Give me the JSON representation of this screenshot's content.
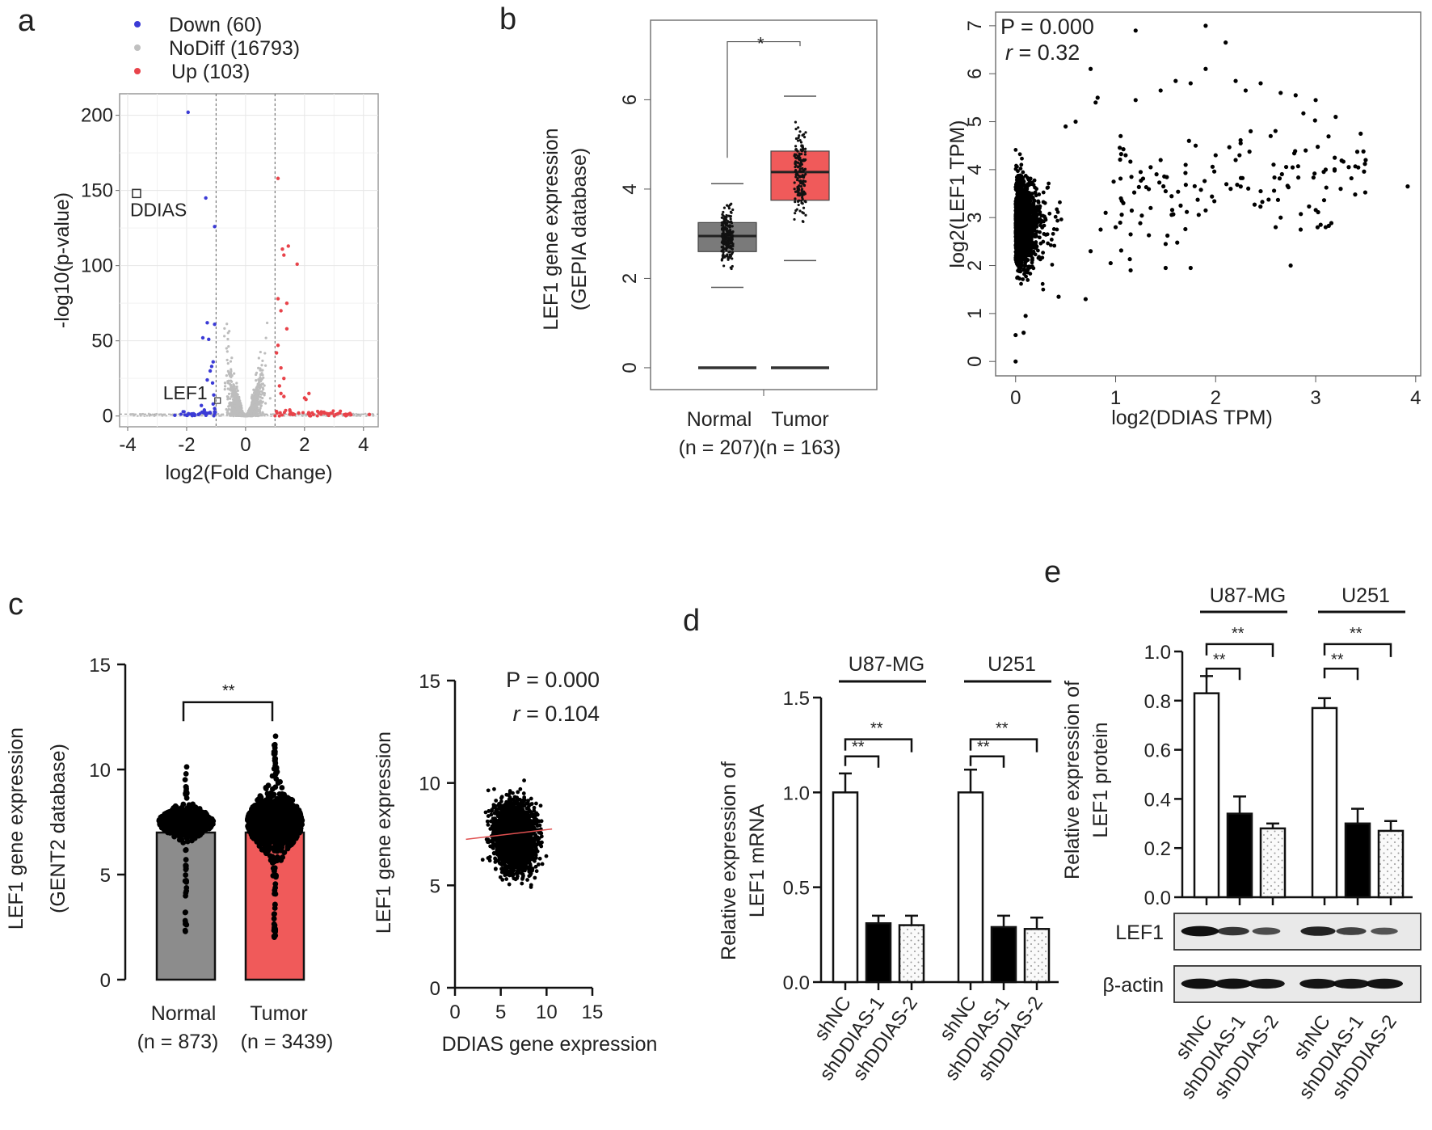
{
  "figure": {
    "panel_labels": [
      "a",
      "b",
      "c",
      "d",
      "e"
    ]
  },
  "chart_data": [
    {
      "id": "a",
      "type": "scatter",
      "subtype": "volcano",
      "title": "",
      "xlabel": "log2(Fold Change)",
      "ylabel": "-log10(p-value)",
      "xlim": [
        -4,
        4.5
      ],
      "ylim": [
        -5,
        210
      ],
      "xticks": [
        "-4",
        "-2",
        "0",
        "2",
        "4"
      ],
      "yticks": [
        "0",
        "50",
        "100",
        "150",
        "200"
      ],
      "grid": true,
      "legend_position": "top",
      "legend": [
        {
          "name": "Down (60)",
          "color": "#3b3bd6"
        },
        {
          "name": "NoDiff (16793)",
          "color": "#c0c0c0"
        },
        {
          "name": "Up (103)",
          "color": "#e8434a"
        }
      ],
      "thresholds_x": [
        -1,
        1
      ],
      "annotations": [
        {
          "label": "DDIAS",
          "x": -3.7,
          "y": 148
        },
        {
          "label": "LEF1",
          "x": -1.1,
          "y": 10
        }
      ],
      "series": [
        {
          "name": "Down",
          "points": [
            [
              -1.95,
              202
            ],
            [
              -1.35,
              145
            ],
            [
              -1.05,
              126
            ],
            [
              -1.3,
              62
            ],
            [
              -1.05,
              61
            ],
            [
              -1.45,
              52
            ],
            [
              -1.25,
              51
            ],
            [
              -1.1,
              36
            ],
            [
              -1.2,
              30
            ],
            [
              -1.15,
              33
            ],
            [
              -1.3,
              24
            ],
            [
              -1.12,
              22
            ],
            [
              -1.08,
              14
            ],
            [
              -1.5,
              7
            ],
            [
              -1.4,
              4
            ],
            [
              -1.2,
              2
            ],
            [
              -1.6,
              1
            ],
            [
              -2.0,
              0.5
            ],
            [
              -2.4,
              0.5
            ],
            [
              -1.1,
              8
            ],
            [
              -1.05,
              5
            ]
          ]
        },
        {
          "name": "Up",
          "points": [
            [
              1.1,
              158
            ],
            [
              1.25,
              111
            ],
            [
              1.45,
              113
            ],
            [
              1.3,
              107
            ],
            [
              1.75,
              101
            ],
            [
              1.1,
              78
            ],
            [
              1.4,
              75
            ],
            [
              1.2,
              70
            ],
            [
              1.4,
              58
            ],
            [
              1.1,
              47
            ],
            [
              1.05,
              42
            ],
            [
              1.2,
              32
            ],
            [
              1.3,
              25
            ],
            [
              1.15,
              20
            ],
            [
              1.2,
              15
            ],
            [
              1.3,
              13
            ],
            [
              2.0,
              12
            ],
            [
              2.15,
              15
            ],
            [
              2.05,
              11
            ],
            [
              1.5,
              4
            ],
            [
              1.8,
              2
            ],
            [
              2.3,
              1
            ],
            [
              2.8,
              1
            ],
            [
              3.4,
              0.5
            ],
            [
              4.2,
              1
            ],
            [
              1.05,
              3
            ],
            [
              1.6,
              1
            ]
          ]
        },
        {
          "name": "NoDiff",
          "points": []
        }
      ]
    },
    {
      "id": "b-left",
      "type": "box",
      "title": "",
      "xlabel": "",
      "ylabel": "LEF1 gene expression\n(GEPIA database)",
      "ylabel_lines": [
        "LEF1 gene expression",
        "(GEPIA database)"
      ],
      "ylim": [
        -0.2,
        7.6
      ],
      "yticks": [
        "0",
        "2",
        "4",
        "6"
      ],
      "categories": [
        "Normal",
        "Tumor"
      ],
      "category_n": [
        "(n = 207)",
        "(n = 163)"
      ],
      "colors": [
        "#7a7a7a",
        "#f05a5a"
      ],
      "series": [
        {
          "name": "Normal",
          "q1": 2.6,
          "median": 2.95,
          "q3": 3.25,
          "whisker_low": 1.8,
          "whisker_high": 4.12
        },
        {
          "name": "Tumor",
          "q1": 3.75,
          "median": 4.38,
          "q3": 4.85,
          "whisker_low": 2.4,
          "whisker_high": 6.08
        }
      ],
      "baseline_value": 0,
      "significance": "*"
    },
    {
      "id": "b-right",
      "type": "scatter",
      "title": "",
      "xlabel": "log2(DDIAS TPM)",
      "ylabel": "log2(LEF1 TPM)",
      "xlim": [
        -0.2,
        4.05
      ],
      "ylim": [
        -0.3,
        7.2
      ],
      "xticks": [
        "0",
        "1",
        "2",
        "3",
        "4"
      ],
      "yticks": [
        "0",
        "1",
        "2",
        "3",
        "4",
        "5",
        "6",
        "7"
      ],
      "stats": {
        "p": "P = 0.000",
        "r_label": "r",
        "r_value": " = 0.32"
      },
      "sample_points": [
        [
          0,
          0
        ],
        [
          0,
          0.55
        ],
        [
          0.08,
          0.6
        ],
        [
          0.1,
          0.95
        ],
        [
          0.7,
          1.3
        ],
        [
          0.43,
          1.35
        ],
        [
          1.2,
          6.9
        ],
        [
          1.9,
          7.0
        ],
        [
          2.1,
          6.65
        ],
        [
          0.75,
          6.1
        ],
        [
          1.9,
          6.1
        ],
        [
          0.82,
          5.5
        ],
        [
          0.8,
          5.4
        ],
        [
          1.2,
          5.45
        ],
        [
          1.45,
          5.65
        ],
        [
          1.6,
          5.85
        ],
        [
          1.75,
          5.8
        ],
        [
          2.2,
          5.85
        ],
        [
          2.3,
          5.65
        ],
        [
          2.45,
          5.8
        ],
        [
          2.65,
          5.6
        ],
        [
          2.8,
          5.55
        ],
        [
          3.0,
          5.45
        ],
        [
          3.2,
          5.1
        ],
        [
          3.45,
          4.75
        ],
        [
          3.5,
          4.2
        ],
        [
          3.92,
          3.65
        ],
        [
          2.9,
          4.4
        ],
        [
          3.1,
          4.0
        ],
        [
          3.25,
          3.6
        ],
        [
          2.6,
          2.8
        ],
        [
          2.65,
          3.0
        ],
        [
          2.75,
          2.0
        ],
        [
          2.85,
          2.75
        ],
        [
          3.05,
          2.85
        ],
        [
          3.1,
          2.8
        ],
        [
          1.5,
          1.95
        ],
        [
          1.15,
          1.9
        ],
        [
          1.75,
          1.95
        ],
        [
          1.5,
          2.45
        ],
        [
          1.35,
          3.2
        ],
        [
          1.65,
          3.25
        ],
        [
          1.9,
          3.15
        ],
        [
          1.0,
          2.8
        ],
        [
          0.95,
          2.05
        ],
        [
          1.15,
          2.65
        ],
        [
          1.25,
          3.95
        ],
        [
          1.5,
          3.55
        ],
        [
          2.15,
          3.6
        ],
        [
          2.45,
          3.55
        ],
        [
          2.35,
          4.8
        ],
        [
          2.55,
          4.7
        ],
        [
          2.0,
          4.3
        ],
        [
          2.2,
          4.2
        ],
        [
          2.25,
          4.55
        ],
        [
          1.8,
          4.5
        ],
        [
          1.7,
          4.1
        ],
        [
          1.45,
          4.2
        ],
        [
          1.05,
          4.7
        ],
        [
          1.1,
          4.3
        ],
        [
          1.35,
          4.05
        ],
        [
          0.6,
          5.0
        ],
        [
          0.5,
          4.9
        ],
        [
          0.98,
          3.75
        ],
        [
          0.9,
          3.1
        ],
        [
          0.85,
          2.75
        ],
        [
          0.75,
          2.3
        ]
      ],
      "dense_cluster": {
        "x_range": [
          0,
          0.55
        ],
        "y_range": [
          1.1,
          4.8
        ],
        "center": [
          0.15,
          2.9
        ]
      }
    },
    {
      "id": "c-left",
      "type": "bar",
      "subtype": "bar-with-swarm",
      "title": "",
      "ylabel_lines": [
        "LEF1 gene expression",
        "(GENT2 database)"
      ],
      "ylim": [
        0,
        15
      ],
      "yticks": [
        "0",
        "5",
        "10",
        "15"
      ],
      "categories": [
        "Normal",
        "Tumor"
      ],
      "category_n": [
        "(n = 873)",
        "(n = 3439)"
      ],
      "values": [
        7.0,
        7.0
      ],
      "colors": [
        "#8c8c8c",
        "#f05a5a"
      ],
      "ranges": [
        [
          2.2,
          10.3
        ],
        [
          1.9,
          11.8
        ]
      ],
      "significance": "**"
    },
    {
      "id": "c-right",
      "type": "scatter",
      "title": "",
      "xlabel": "DDIAS gene expression",
      "ylabel": "LEF1 gene expression",
      "xlim": [
        0,
        15
      ],
      "ylim": [
        0,
        15
      ],
      "xticks": [
        "0",
        "5",
        "10",
        "15"
      ],
      "yticks": [
        "0",
        "5",
        "10",
        "15"
      ],
      "stats": {
        "p": "P = 0.000",
        "r_label": "r",
        "r_value": " = 0.104"
      },
      "dense_cluster": {
        "x_range": [
          1.2,
          10.5
        ],
        "y_range": [
          2.0,
          11.8
        ],
        "center": [
          6.5,
          7.4
        ]
      },
      "regression_line": {
        "y_at_xmin": 7.25,
        "y_at_xmax": 7.75,
        "color": "#e05050"
      }
    },
    {
      "id": "d",
      "type": "bar",
      "title": "",
      "ylabel_lines": [
        "Relative expression of",
        "LEF1 mRNA"
      ],
      "ylim": [
        0,
        1.5
      ],
      "yticks": [
        "0.0",
        "0.5",
        "1.0",
        "1.5"
      ],
      "groups": [
        "U87-MG",
        "U251"
      ],
      "categories": [
        "shNC",
        "shDDIAS-1",
        "shDDIAS-2",
        "shNC",
        "shDDIAS-1",
        "shDDIAS-2"
      ],
      "series": [
        {
          "name": "U87-MG",
          "values": [
            1.0,
            0.31,
            0.3
          ],
          "errors": [
            0.1,
            0.04,
            0.05
          ]
        },
        {
          "name": "U251",
          "values": [
            1.0,
            0.29,
            0.28
          ],
          "errors": [
            0.12,
            0.06,
            0.06
          ]
        }
      ],
      "fills": [
        "white",
        "black",
        "dotted"
      ],
      "significance": [
        "**",
        "**",
        "**",
        "**"
      ]
    },
    {
      "id": "e",
      "type": "bar",
      "title": "",
      "ylabel_lines": [
        "Relative expression of",
        "LEF1 protein"
      ],
      "ylim": [
        0,
        1.0
      ],
      "yticks": [
        "0.0",
        "0.2",
        "0.4",
        "0.6",
        "0.8",
        "1.0"
      ],
      "groups": [
        "U87-MG",
        "U251"
      ],
      "categories": [
        "shNC",
        "shDDIAS-1",
        "shDDIAS-2",
        "shNC",
        "shDDIAS-1",
        "shDDIAS-2"
      ],
      "series": [
        {
          "name": "U87-MG",
          "values": [
            0.83,
            0.34,
            0.28
          ],
          "errors": [
            0.07,
            0.07,
            0.02
          ]
        },
        {
          "name": "U251",
          "values": [
            0.77,
            0.3,
            0.27
          ],
          "errors": [
            0.04,
            0.06,
            0.04
          ]
        }
      ],
      "fills": [
        "white",
        "black",
        "dotted"
      ],
      "significance": [
        "**",
        "**",
        "**",
        "**"
      ],
      "blot_rows": [
        {
          "label": "LEF1",
          "band_intensity": [
            0.95,
            0.65,
            0.45,
            0.8,
            0.55,
            0.4
          ]
        },
        {
          "label": "β-actin",
          "band_intensity": [
            0.95,
            0.95,
            0.9,
            0.9,
            0.9,
            0.92
          ]
        }
      ]
    }
  ]
}
